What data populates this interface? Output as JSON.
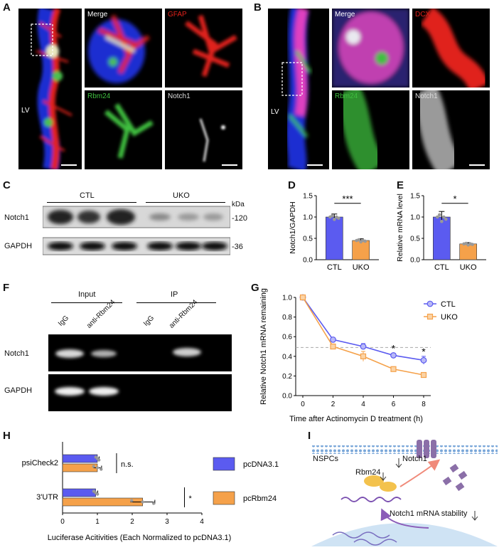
{
  "panel_labels": {
    "a": "A",
    "b": "B",
    "c": "C",
    "d": "D",
    "e": "E",
    "f": "F",
    "g": "G",
    "h": "H",
    "i": "I"
  },
  "panelA": {
    "lv": "LV",
    "merge": "Merge",
    "ch1": "GFAP",
    "ch2": "Rbm24",
    "ch3": "Notch1"
  },
  "panelB": {
    "lv": "LV",
    "merge": "Merge",
    "ch1": "DCX",
    "ch2": "Rbm24",
    "ch3": "Notch1"
  },
  "panelC": {
    "group1": "CTL",
    "group2": "UKO",
    "unit": "kDa",
    "row1": "Notch1",
    "row2": "GAPDH",
    "mw1": "-120",
    "mw2": "-36"
  },
  "panelF": {
    "input": "Input",
    "ip": "IP",
    "lane1": "IgG",
    "lane2": "anti-Rbm24",
    "lane3": "IgG",
    "lane4": "anti-Rbm24",
    "row1": "Notch1",
    "row2": "GAPDH"
  },
  "panelI": {
    "nspcs": "NSPCs",
    "notch1": "Notch1",
    "rbm24": "Rbm24",
    "stability": "Notch1 mRNA stability"
  },
  "colors": {
    "ctl": "#5b5bf0",
    "uko": "#f5a14a"
  },
  "chart_data": [
    {
      "id": "D",
      "type": "bar",
      "ylabel": "Notch1/GAPDH",
      "categories": [
        "CTL",
        "UKO"
      ],
      "values": [
        1.0,
        0.45
      ],
      "errors": [
        0.07,
        0.04
      ],
      "ylim": [
        0,
        1.5
      ],
      "yticks": [
        "0.0",
        "0.5",
        "1.0",
        "1.5"
      ],
      "significance": "***"
    },
    {
      "id": "E",
      "type": "bar",
      "ylabel": "Relative mRNA level",
      "categories": [
        "CTL",
        "UKO"
      ],
      "values": [
        1.0,
        0.37
      ],
      "errors": [
        0.13,
        0.03
      ],
      "ylim": [
        0,
        1.5
      ],
      "yticks": [
        "0.0",
        "0.5",
        "1.0",
        "1.5"
      ],
      "significance": "*"
    },
    {
      "id": "G",
      "type": "line",
      "ylabel": "Relative Notch1 mRNA remaining",
      "xlabel": "Time after Actinomycin D treatment (h)",
      "x": [
        0,
        2,
        4,
        6,
        8
      ],
      "xticks": [
        "0",
        "2",
        "4",
        "6",
        "8"
      ],
      "yticks": [
        "0.0",
        "0.2",
        "0.4",
        "0.6",
        "0.8",
        "1.0"
      ],
      "xlim": [
        0,
        8
      ],
      "ylim": [
        0,
        1.0
      ],
      "reference_line": 0.49,
      "series": [
        {
          "name": "CTL",
          "values": [
            1.0,
            0.57,
            0.5,
            0.41,
            0.36
          ],
          "errors": [
            0,
            0.02,
            0.03,
            0.02,
            0.04
          ]
        },
        {
          "name": "UKO",
          "values": [
            1.0,
            0.5,
            0.4,
            0.27,
            0.21
          ],
          "errors": [
            0,
            0.02,
            0.05,
            0.02,
            0.02
          ]
        }
      ],
      "significance": [
        {
          "x": 6,
          "label": "*"
        },
        {
          "x": 8,
          "label": "*"
        }
      ],
      "legend": "top-right"
    },
    {
      "id": "H",
      "type": "bar",
      "orientation": "horizontal",
      "xlabel": "Luciferase Acitivities (Each Normalized to pcDNA3.1)",
      "categories": [
        "psiCheck2",
        "3'UTR"
      ],
      "xlim": [
        0,
        4
      ],
      "xticks": [
        "0",
        "1",
        "2",
        "3",
        "4"
      ],
      "series": [
        {
          "name": "pcDNA3.1",
          "values": [
            1.0,
            0.95
          ],
          "errors": [
            0.05,
            0.06
          ]
        },
        {
          "name": "pcRbm24",
          "values": [
            1.0,
            2.3
          ],
          "errors": [
            0.12,
            0.35
          ]
        }
      ],
      "significance": [
        "n.s.",
        "*"
      ],
      "legend": "right"
    }
  ]
}
